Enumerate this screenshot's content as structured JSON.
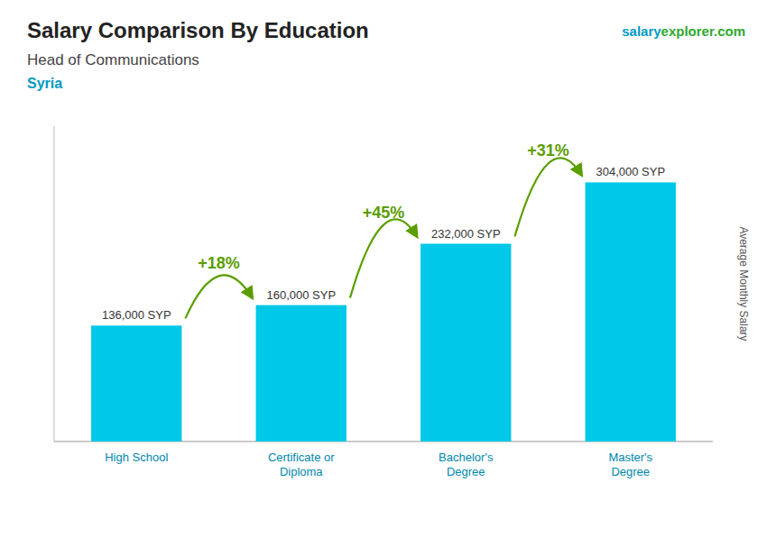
{
  "chart_data": {
    "type": "bar",
    "title": "Salary Comparison By Education",
    "subtitle": "Head of Communications",
    "country": "Syria",
    "source": [
      "salary",
      "explorer.com"
    ],
    "ylabel": "Average Monthly Salary",
    "categories": [
      "High School",
      "Certificate or\nDiploma",
      "Bachelor's\nDegree",
      "Master's\nDegree"
    ],
    "values": [
      136000,
      160000,
      232000,
      304000
    ],
    "value_labels": [
      "136,000 SYP",
      "160,000 SYP",
      "232,000 SYP",
      "304,000 SYP"
    ],
    "annotations": [
      "+18%",
      "+45%",
      "+31%"
    ],
    "color": "#00c8e8",
    "ylim": [
      0,
      370000
    ],
    "data_labels": true,
    "tick_labels": "x",
    "grid": false
  }
}
